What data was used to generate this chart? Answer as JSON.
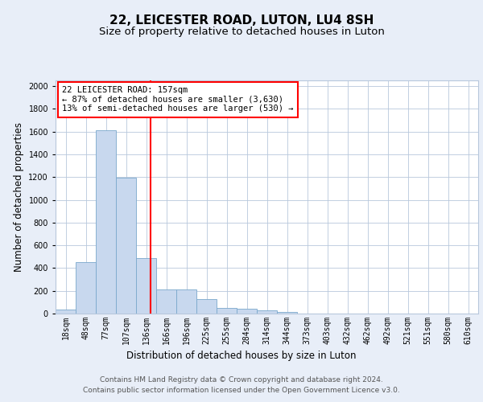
{
  "title": "22, LEICESTER ROAD, LUTON, LU4 8SH",
  "subtitle": "Size of property relative to detached houses in Luton",
  "xlabel": "Distribution of detached houses by size in Luton",
  "ylabel": "Number of detached properties",
  "bar_labels": [
    "18sqm",
    "48sqm",
    "77sqm",
    "107sqm",
    "136sqm",
    "166sqm",
    "196sqm",
    "225sqm",
    "255sqm",
    "284sqm",
    "314sqm",
    "344sqm",
    "373sqm",
    "403sqm",
    "432sqm",
    "462sqm",
    "492sqm",
    "521sqm",
    "551sqm",
    "580sqm",
    "610sqm"
  ],
  "bar_values": [
    35,
    455,
    1610,
    1195,
    490,
    210,
    210,
    130,
    50,
    40,
    25,
    15,
    0,
    0,
    0,
    0,
    0,
    0,
    0,
    0,
    0
  ],
  "bar_color": "#c8d8ee",
  "bar_edgecolor": "#7aa8cc",
  "vline_color": "red",
  "annotation_text": "22 LEICESTER ROAD: 157sqm\n← 87% of detached houses are smaller (3,630)\n13% of semi-detached houses are larger (530) →",
  "annotation_box_facecolor": "white",
  "annotation_box_edgecolor": "red",
  "ylim": [
    0,
    2050
  ],
  "yticks": [
    0,
    200,
    400,
    600,
    800,
    1000,
    1200,
    1400,
    1600,
    1800,
    2000
  ],
  "footer_line1": "Contains HM Land Registry data © Crown copyright and database right 2024.",
  "footer_line2": "Contains public sector information licensed under the Open Government Licence v3.0.",
  "background_color": "#e8eef8",
  "plot_background_color": "white",
  "grid_color": "#b8c8dc",
  "title_fontsize": 11,
  "subtitle_fontsize": 9.5,
  "axis_label_fontsize": 8.5,
  "tick_fontsize": 7,
  "annotation_fontsize": 7.5,
  "footer_fontsize": 6.5,
  "vline_pos": 4.2
}
